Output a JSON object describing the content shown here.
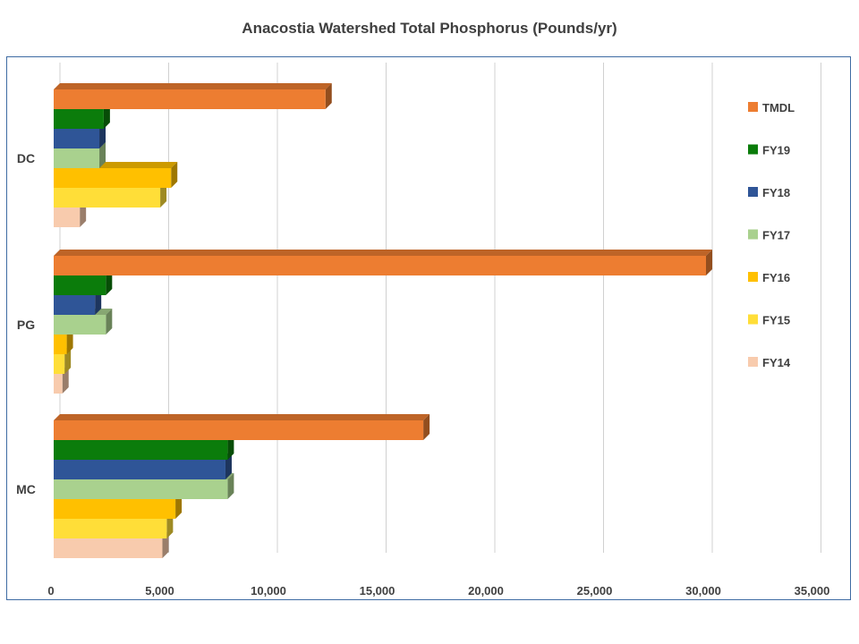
{
  "chart_data": {
    "type": "bar",
    "orientation": "horizontal",
    "style": "3d",
    "title": "Anacostia Watershed Total Phosphorus (Pounds/yr)",
    "xlabel": "",
    "ylabel": "",
    "xlim": [
      0,
      35000
    ],
    "x_ticks": [
      "0",
      "5,000",
      "10,000",
      "15,000",
      "20,000",
      "25,000",
      "30,000",
      "35,000"
    ],
    "categories": [
      "DC",
      "PG",
      "MC"
    ],
    "grid": "vertical",
    "legend_position": "right",
    "series": [
      {
        "name": "TMDL",
        "color": "#ed7d31",
        "values": [
          12500,
          30000,
          17000
        ]
      },
      {
        "name": "FY19",
        "color": "#0b7c0b",
        "values": [
          2300,
          2400,
          8000
        ]
      },
      {
        "name": "FY18",
        "color": "#2f5597",
        "values": [
          2100,
          1900,
          7900
        ]
      },
      {
        "name": "FY17",
        "color": "#a9d18e",
        "values": [
          2100,
          2400,
          8000
        ]
      },
      {
        "name": "FY16",
        "color": "#ffc000",
        "values": [
          5400,
          600,
          5600
        ]
      },
      {
        "name": "FY15",
        "color": "#ffde38",
        "values": [
          4900,
          500,
          5200
        ]
      },
      {
        "name": "FY14",
        "color": "#f8cbad",
        "values": [
          1200,
          400,
          5000
        ]
      }
    ]
  }
}
